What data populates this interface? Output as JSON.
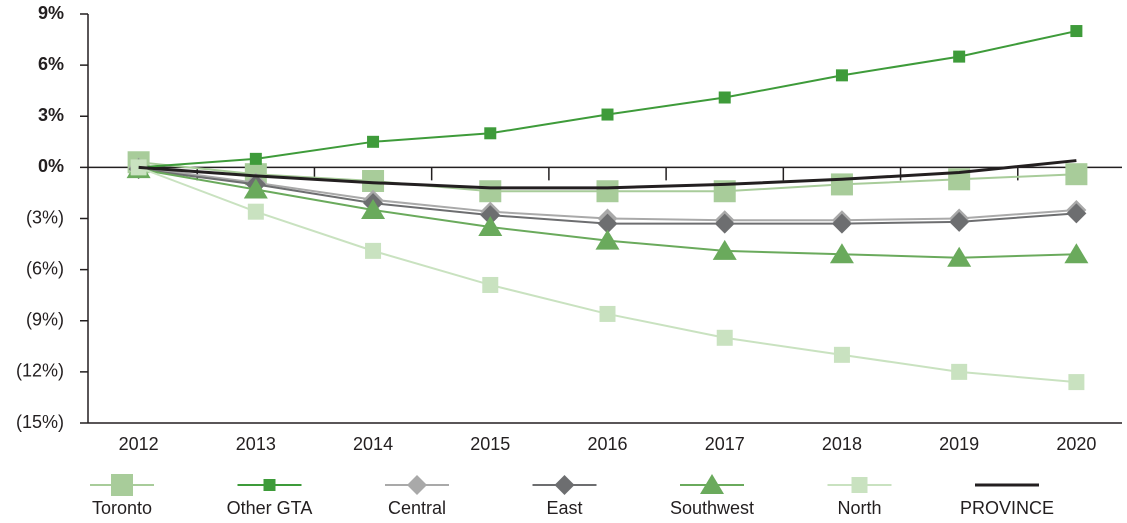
{
  "chart_data": {
    "type": "line",
    "categories": [
      "2012",
      "2013",
      "2014",
      "2015",
      "2016",
      "2017",
      "2018",
      "2019",
      "2020"
    ],
    "series": [
      {
        "name": "Toronto",
        "color": "#a8cc9a",
        "marker": "square",
        "values": [
          0.3,
          -0.4,
          -0.8,
          -1.4,
          -1.4,
          -1.4,
          -1.0,
          -0.7,
          -0.4
        ]
      },
      {
        "name": "Other GTA",
        "color": "#3e9b3a",
        "marker": "square",
        "values": [
          0,
          0.5,
          1.5,
          2.0,
          3.1,
          4.1,
          5.4,
          6.5,
          8.0
        ]
      },
      {
        "name": "Central",
        "color": "#a9a9a9",
        "marker": "diamond",
        "values": [
          0,
          -0.9,
          -1.9,
          -2.6,
          -3.0,
          -3.1,
          -3.1,
          -3.0,
          -2.5
        ]
      },
      {
        "name": "East",
        "color": "#6d6e70",
        "marker": "diamond",
        "values": [
          -0.1,
          -1.0,
          -2.1,
          -2.8,
          -3.3,
          -3.3,
          -3.3,
          -3.2,
          -2.7
        ]
      },
      {
        "name": "Southwest",
        "color": "#6aaa5c",
        "marker": "triangle",
        "values": [
          -0.1,
          -1.3,
          -2.5,
          -3.5,
          -4.3,
          -4.9,
          -5.1,
          -5.3,
          -5.1
        ]
      },
      {
        "name": "North",
        "color": "#c9e2c0",
        "marker": "square",
        "values": [
          0,
          -2.6,
          -4.9,
          -6.9,
          -8.6,
          -10.0,
          -11.0,
          -12.0,
          -12.6
        ]
      },
      {
        "name": "PROVINCE",
        "color": "#231f20",
        "marker": "none",
        "values": [
          0,
          -0.5,
          -0.9,
          -1.2,
          -1.2,
          -1.0,
          -0.7,
          -0.3,
          0.4
        ]
      }
    ],
    "ylim": [
      -15,
      9
    ],
    "yticks": [
      {
        "value": 9,
        "label": "9%"
      },
      {
        "value": 6,
        "label": "6%"
      },
      {
        "value": 3,
        "label": "3%"
      },
      {
        "value": 0,
        "label": "0%"
      },
      {
        "value": -3,
        "label": "(3%)"
      },
      {
        "value": -6,
        "label": "(6%)"
      },
      {
        "value": -9,
        "label": "(9%)"
      },
      {
        "value": -12,
        "label": "(12%)"
      },
      {
        "value": -15,
        "label": "(15%)"
      }
    ]
  }
}
